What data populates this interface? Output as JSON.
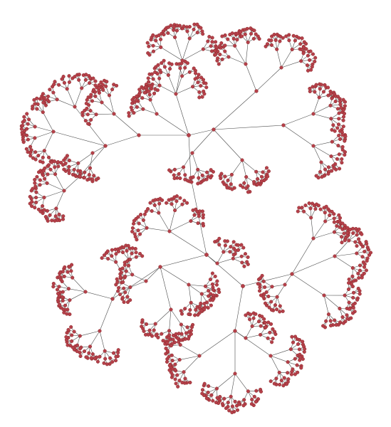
{
  "graph": {
    "type": "radial-tree-network",
    "node_color": "#b5404a",
    "edge_color": "#4a4a4a",
    "background": "#ffffff",
    "labels_visible": false
  }
}
